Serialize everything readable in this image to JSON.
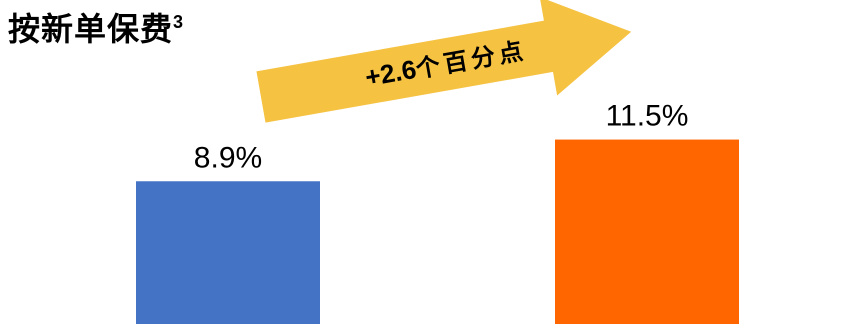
{
  "title": {
    "text": "按新单保费",
    "superscript": "3"
  },
  "annotation": {
    "value": "+2.6",
    "unit": "个百分点",
    "arrow_color": "#F5C242"
  },
  "chart_data": {
    "type": "bar",
    "categories": [
      "",
      ""
    ],
    "values": [
      8.9,
      11.5
    ],
    "value_labels": [
      "8.9%",
      "11.5%"
    ],
    "colors": [
      "#4472C4",
      "#FF6600"
    ],
    "unit": "%",
    "ylim": [
      0,
      20
    ],
    "grid": false,
    "legend": "none"
  }
}
